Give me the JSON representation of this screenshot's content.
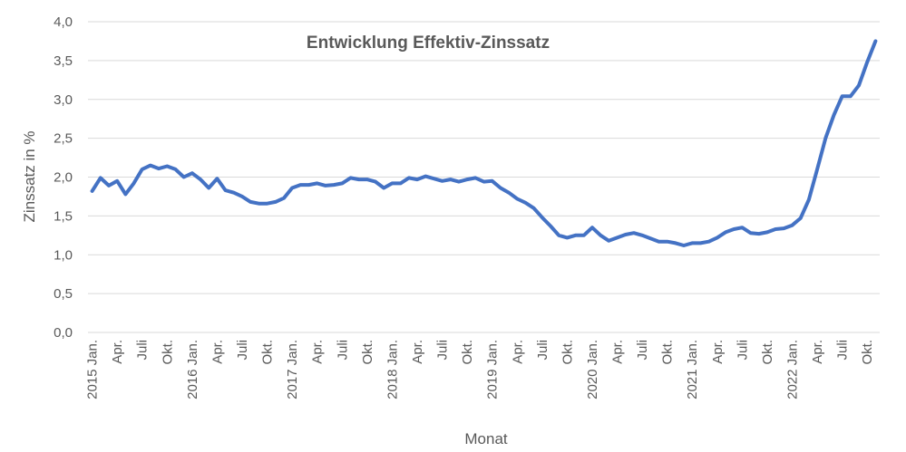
{
  "chart_data": {
    "type": "line",
    "title": "Entwicklung Effektiv-Zinssatz",
    "xlabel": "Monat",
    "ylabel": "Zinssatz in %",
    "ylim": [
      0,
      4
    ],
    "ytick_labels": [
      "0,0",
      "0,5",
      "1,0",
      "1,5",
      "2,0",
      "2,5",
      "3,0",
      "3,5",
      "4,0"
    ],
    "grid": true,
    "legend": "none",
    "x_labels": [
      "2015 Jan.",
      "Apr.",
      "Juli",
      "Okt.",
      "2016 Jan.",
      "Apr.",
      "Juli",
      "Okt.",
      "2017 Jan.",
      "Apr.",
      "Juli",
      "Okt.",
      "2018 Jan.",
      "Apr.",
      "Juli",
      "Okt.",
      "2019 Jan.",
      "Apr.",
      "Juli",
      "Okt.",
      "2020 Jan.",
      "Apr.",
      "Juli",
      "Okt.",
      "2021 Jan.",
      "Apr.",
      "Juli",
      "Okt.",
      "2022 Jan.",
      "Apr.",
      "Juli",
      "Okt."
    ],
    "months": [
      "2015-01",
      "2015-02",
      "2015-03",
      "2015-04",
      "2015-05",
      "2015-06",
      "2015-07",
      "2015-08",
      "2015-09",
      "2015-10",
      "2015-11",
      "2015-12",
      "2016-01",
      "2016-02",
      "2016-03",
      "2016-04",
      "2016-05",
      "2016-06",
      "2016-07",
      "2016-08",
      "2016-09",
      "2016-10",
      "2016-11",
      "2016-12",
      "2017-01",
      "2017-02",
      "2017-03",
      "2017-04",
      "2017-05",
      "2017-06",
      "2017-07",
      "2017-08",
      "2017-09",
      "2017-10",
      "2017-11",
      "2017-12",
      "2018-01",
      "2018-02",
      "2018-03",
      "2018-04",
      "2018-05",
      "2018-06",
      "2018-07",
      "2018-08",
      "2018-09",
      "2018-10",
      "2018-11",
      "2018-12",
      "2019-01",
      "2019-02",
      "2019-03",
      "2019-04",
      "2019-05",
      "2019-06",
      "2019-07",
      "2019-08",
      "2019-09",
      "2019-10",
      "2019-11",
      "2019-12",
      "2020-01",
      "2020-02",
      "2020-03",
      "2020-04",
      "2020-05",
      "2020-06",
      "2020-07",
      "2020-08",
      "2020-09",
      "2020-10",
      "2020-11",
      "2020-12",
      "2021-01",
      "2021-02",
      "2021-03",
      "2021-04",
      "2021-05",
      "2021-06",
      "2021-07",
      "2021-08",
      "2021-09",
      "2021-10",
      "2021-11",
      "2021-12",
      "2022-01",
      "2022-02",
      "2022-03",
      "2022-04",
      "2022-05",
      "2022-06",
      "2022-07",
      "2022-08",
      "2022-09",
      "2022-10",
      "2022-11"
    ],
    "series": [
      {
        "color": "#4472c4",
        "values": [
          1.82,
          1.99,
          1.89,
          1.95,
          1.78,
          1.92,
          2.1,
          2.15,
          2.11,
          2.14,
          2.1,
          2.0,
          2.05,
          1.97,
          1.86,
          1.98,
          1.83,
          1.8,
          1.75,
          1.68,
          1.66,
          1.66,
          1.68,
          1.73,
          1.86,
          1.9,
          1.9,
          1.92,
          1.89,
          1.9,
          1.92,
          1.99,
          1.97,
          1.97,
          1.94,
          1.86,
          1.92,
          1.92,
          1.99,
          1.97,
          2.01,
          1.98,
          1.95,
          1.97,
          1.94,
          1.97,
          1.99,
          1.94,
          1.95,
          1.86,
          1.8,
          1.72,
          1.67,
          1.6,
          1.48,
          1.37,
          1.25,
          1.22,
          1.25,
          1.25,
          1.35,
          1.25,
          1.18,
          1.22,
          1.26,
          1.28,
          1.25,
          1.21,
          1.17,
          1.17,
          1.15,
          1.12,
          1.15,
          1.15,
          1.17,
          1.22,
          1.29,
          1.33,
          1.35,
          1.28,
          1.27,
          1.29,
          1.33,
          1.34,
          1.38,
          1.47,
          1.71,
          2.1,
          2.5,
          2.8,
          3.04,
          3.04,
          3.18,
          3.48,
          3.75
        ]
      }
    ]
  }
}
